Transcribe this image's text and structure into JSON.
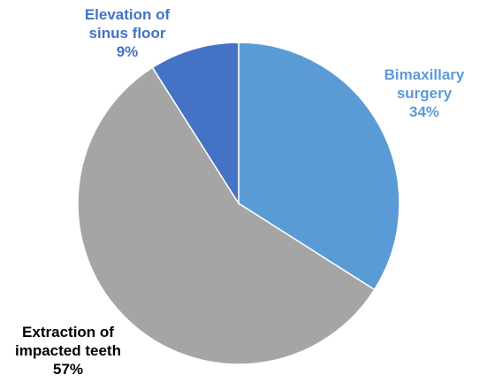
{
  "chart_data": {
    "type": "pie",
    "title": "",
    "slices": [
      {
        "label_lines": [
          "Bimaxillary",
          "surgery"
        ],
        "label": "Bimaxillary surgery",
        "value": 34,
        "percent_label": "34%",
        "color": "#5B9BD5"
      },
      {
        "label_lines": [
          "Extraction of",
          "impacted teeth"
        ],
        "label": "Extraction of impacted teeth",
        "value": 57,
        "percent_label": "57%",
        "color": "#A5A5A5"
      },
      {
        "label_lines": [
          "Elevation of",
          "sinus floor"
        ],
        "label": "Elevation of sinus floor",
        "value": 9,
        "percent_label": "9%",
        "color": "#4472C4"
      }
    ],
    "label_colors": [
      "#5B9BD5",
      "#000000",
      "#4472C4"
    ],
    "start_angle": "12 o'clock",
    "direction": "clockwise",
    "legend": "none"
  }
}
